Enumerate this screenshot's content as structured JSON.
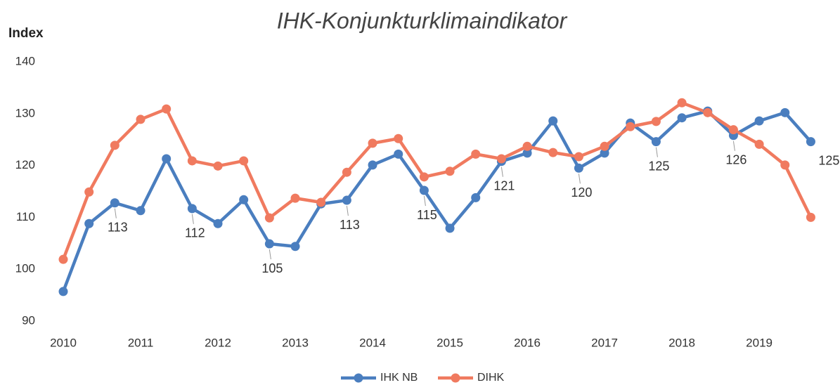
{
  "chart_data": {
    "type": "line",
    "title": "IHK-Konjunkturklimaindikator",
    "y_label": "Index",
    "categories": [
      "2010",
      null,
      null,
      "2011",
      null,
      null,
      "2012",
      null,
      null,
      "2013",
      null,
      null,
      "2014",
      null,
      null,
      "2015",
      null,
      null,
      "2016",
      null,
      null,
      "2017",
      null,
      null,
      "2018",
      null,
      null,
      "2019",
      null,
      null
    ],
    "series": [
      {
        "name": "IHK NB",
        "color": "#4a7ebf",
        "values": [
          95.7,
          108.8,
          112.8,
          111.3,
          121.3,
          111.7,
          108.8,
          113.4,
          104.9,
          104.4,
          112.6,
          113.3,
          120.1,
          122.2,
          115.2,
          107.9,
          113.8,
          120.8,
          122.4,
          128.6,
          119.5,
          122.4,
          128.2,
          124.6,
          129.2,
          130.5,
          125.8,
          128.6,
          130.2,
          124.6
        ],
        "value_labels": [
          null,
          null,
          "113",
          null,
          null,
          "112",
          null,
          null,
          "105",
          null,
          null,
          "113",
          null,
          null,
          "115",
          null,
          null,
          "121",
          null,
          null,
          "120",
          null,
          null,
          "125",
          null,
          null,
          "126",
          null,
          null,
          "125"
        ]
      },
      {
        "name": "DIHK",
        "color": "#f07a5f",
        "values": [
          101.9,
          114.9,
          123.9,
          128.9,
          130.9,
          120.9,
          119.9,
          120.9,
          109.9,
          113.7,
          112.9,
          118.7,
          124.3,
          125.2,
          117.8,
          118.9,
          122.2,
          121.3,
          123.7,
          122.5,
          121.7,
          123.7,
          127.5,
          128.5,
          132.1,
          130.2,
          126.9,
          124.1,
          120.1,
          110
        ]
      }
    ],
    "ylim": [
      90,
      140
    ],
    "yticks": [
      90,
      100,
      110,
      120,
      130,
      140
    ],
    "grid": false,
    "legend": "bottom"
  }
}
